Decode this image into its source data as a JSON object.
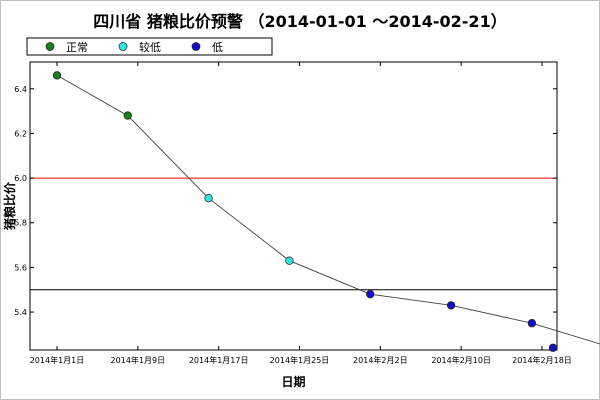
{
  "chart_data": {
    "type": "line",
    "title": "四川省 猪粮比价预警 （2014-01-01 ～2014-02-21）",
    "xlabel": "日期",
    "ylabel": "猪粮比价",
    "x_ticks": [
      "2014年1月1日",
      "2014年1月9日",
      "2014年1月17日",
      "2014年1月25日",
      "2014年2月2日",
      "2014年2月10日",
      "2014年2月18日"
    ],
    "y_ticks": [
      "5.4",
      "5.6",
      "5.8",
      "6.0",
      "6.2",
      "6.4"
    ],
    "xlim": [
      "2014-01-01",
      "2014-02-18"
    ],
    "ylim": [
      5.23,
      6.52
    ],
    "reference_lines": [
      {
        "value": 6.0,
        "color": "#ff0000"
      },
      {
        "value": 5.5,
        "color": "#000000"
      }
    ],
    "legend": [
      {
        "label": "正常",
        "color": "#1a7f1a"
      },
      {
        "label": "较低",
        "color": "#33e6e6"
      },
      {
        "label": "低",
        "color": "#1010c8"
      }
    ],
    "legend_placement": "top-left",
    "grid": false,
    "points": [
      {
        "x": "2014-01-01",
        "y": 6.46,
        "class": "正常"
      },
      {
        "x": "2014-01-08",
        "y": 6.28,
        "class": "正常"
      },
      {
        "x": "2014-01-16",
        "y": 5.91,
        "class": "较低"
      },
      {
        "x": "2014-01-24",
        "y": 5.63,
        "class": "较低"
      },
      {
        "x": "2014-02-01",
        "y": 5.48,
        "class": "低"
      },
      {
        "x": "2014-02-09",
        "y": 5.43,
        "class": "低"
      },
      {
        "x": "2014-02-17",
        "y": 5.35,
        "class": "低"
      },
      {
        "x": "2014-02-25",
        "y": 5.24,
        "class": "低"
      }
    ]
  }
}
